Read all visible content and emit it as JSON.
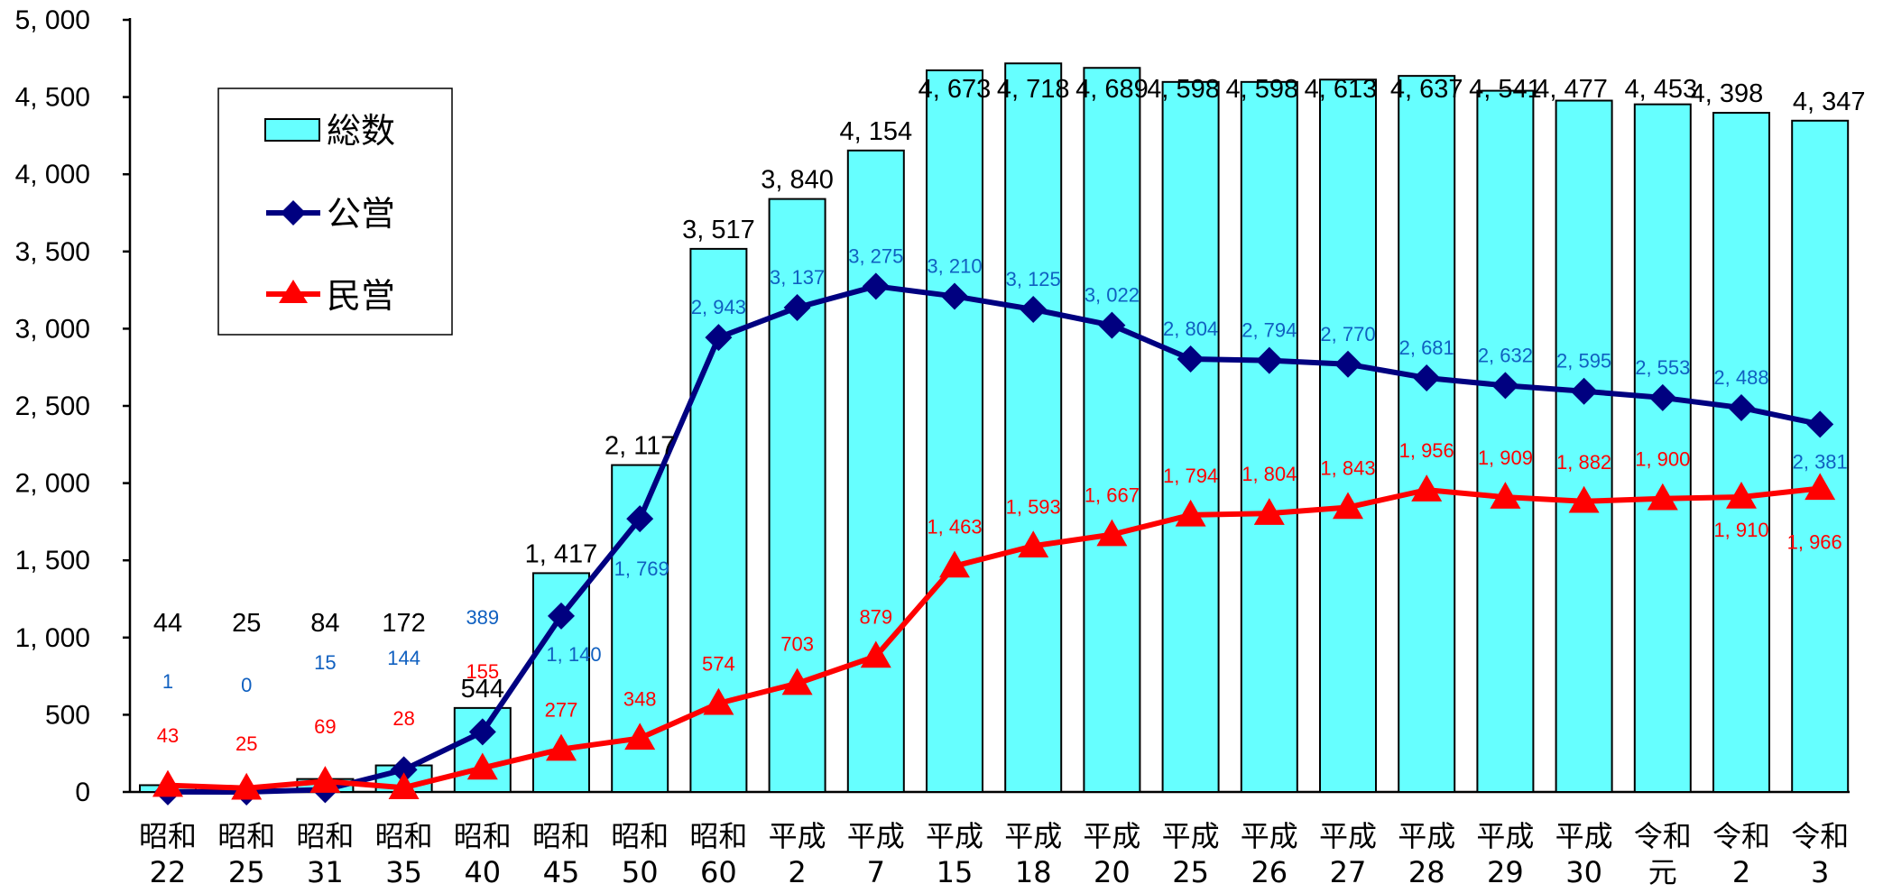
{
  "chart_data": {
    "type": "bar",
    "ylim": [
      0,
      5000
    ],
    "yticks": [
      "0",
      "500",
      "1, 000",
      "1, 500",
      "2, 000",
      "2, 500",
      "3, 000",
      "3, 500",
      "4, 000",
      "4, 500",
      "5, 000"
    ],
    "categories": [
      [
        "昭和",
        "22"
      ],
      [
        "昭和",
        "25"
      ],
      [
        "昭和",
        "31"
      ],
      [
        "昭和",
        "35"
      ],
      [
        "昭和",
        "40"
      ],
      [
        "昭和",
        "45"
      ],
      [
        "昭和",
        "50"
      ],
      [
        "昭和",
        "60"
      ],
      [
        "平成",
        "2"
      ],
      [
        "平成",
        "7"
      ],
      [
        "平成",
        "15"
      ],
      [
        "平成",
        "18"
      ],
      [
        "平成",
        "20"
      ],
      [
        "平成",
        "25"
      ],
      [
        "平成",
        "26"
      ],
      [
        "平成",
        "27"
      ],
      [
        "平成",
        "28"
      ],
      [
        "平成",
        "29"
      ],
      [
        "平成",
        "30"
      ],
      [
        "令和",
        "元"
      ],
      [
        "令和",
        "2"
      ],
      [
        "令和",
        "3"
      ]
    ],
    "legend_position": "top-left",
    "series": [
      {
        "name": "総数",
        "kind": "bar",
        "color": "#66ffff",
        "values": [
          44,
          25,
          84,
          172,
          544,
          1417,
          2117,
          3517,
          3840,
          4154,
          4673,
          4718,
          4689,
          4598,
          4598,
          4613,
          4637,
          4541,
          4477,
          4453,
          4398,
          4347
        ],
        "labels": [
          "44",
          "25",
          "84",
          "172",
          "544",
          "1, 417",
          "2, 117",
          "3, 517",
          "3, 840",
          "4, 154",
          "4, 673",
          "4, 718",
          "4, 689",
          "4, 598",
          "4, 598",
          "4, 613",
          "4, 637",
          "4, 541",
          "4, 477",
          "4, 453",
          "4, 398",
          "4, 347"
        ]
      },
      {
        "name": "公営",
        "kind": "line",
        "marker": "diamond",
        "color": "#000080",
        "label_color": "#1060c0",
        "values": [
          1,
          0,
          15,
          144,
          389,
          1140,
          1769,
          2943,
          3137,
          3275,
          3210,
          3125,
          3022,
          2804,
          2794,
          2770,
          2681,
          2632,
          2595,
          2553,
          2488,
          2381
        ],
        "labels": [
          "1",
          "0",
          "15",
          "144",
          "389",
          "1, 140",
          "1, 769",
          "2, 943",
          "3, 137",
          "3, 275",
          "3, 210",
          "3, 125",
          "3, 022",
          "2, 804",
          "2, 794",
          "2, 770",
          "2, 681",
          "2, 632",
          "2, 595",
          "2, 553",
          "2, 488",
          "2, 381"
        ]
      },
      {
        "name": "民営",
        "kind": "line",
        "marker": "triangle",
        "color": "#ff0000",
        "label_color": "#ff0000",
        "values": [
          43,
          25,
          69,
          28,
          155,
          277,
          348,
          574,
          703,
          879,
          1463,
          1593,
          1667,
          1794,
          1804,
          1843,
          1956,
          1909,
          1882,
          1900,
          1910,
          1966
        ],
        "labels": [
          "43",
          "25",
          "69",
          "28",
          "155",
          "277",
          "348",
          "574",
          "703",
          "879",
          "1, 463",
          "1, 593",
          "1, 667",
          "1, 794",
          "1, 804",
          "1, 843",
          "1, 956",
          "1, 909",
          "1, 882",
          "1, 900",
          "1, 910",
          "1, 966"
        ]
      }
    ]
  }
}
